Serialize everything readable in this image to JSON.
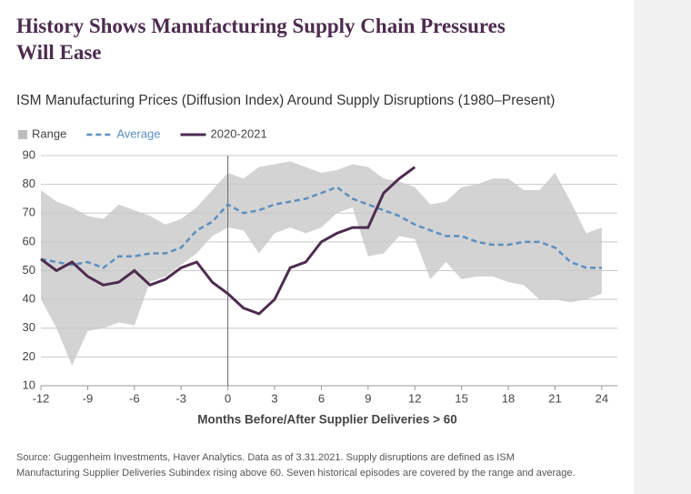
{
  "chart_data": {
    "type": "line",
    "title": "History Shows Manufacturing Supply Chain Pressures Will Ease",
    "subtitle": "ISM Manufacturing Prices (Diffusion Index) Around Supply Disruptions (1980–Present)",
    "xlabel": "Months Before/After Supplier Deliveries > 60",
    "source": [
      "Source: Guggenheim Investments, Haver Analytics. Data as of 3.31.2021. Supply disruptions are defined as ISM",
      "Manufacturing Supplier Deliveries Subindex rising above 60. Seven historical episodes are covered by the range and average."
    ],
    "x": [
      -12,
      -11,
      -10,
      -9,
      -8,
      -7,
      -6,
      -5,
      -4,
      -3,
      -2,
      -1,
      0,
      1,
      2,
      3,
      4,
      5,
      6,
      7,
      8,
      9,
      10,
      11,
      12,
      13,
      14,
      15,
      16,
      17,
      18,
      19,
      20,
      21,
      22,
      23,
      24
    ],
    "range": {
      "name": "Range",
      "color": "#d3d3d3",
      "upper": [
        78,
        74,
        72,
        69,
        68,
        73,
        71,
        69,
        66,
        68,
        72,
        78,
        84,
        82,
        86,
        87,
        88,
        86,
        84,
        85,
        87,
        86,
        82,
        81,
        79,
        73,
        74,
        79,
        80,
        82,
        82,
        78,
        78,
        84,
        74,
        63,
        65
      ],
      "lower": [
        40,
        30,
        17,
        29,
        30,
        32,
        31,
        46,
        48,
        52,
        56,
        62,
        65,
        64,
        56,
        63,
        65,
        63,
        65,
        70,
        72,
        55,
        56,
        62,
        61,
        47,
        53,
        47,
        48,
        48,
        46,
        45,
        40,
        40,
        39,
        40,
        42
      ]
    },
    "series": [
      {
        "name": "Average",
        "color": "#5b8fc0",
        "dash": true,
        "values": [
          54,
          53,
          52,
          53,
          51,
          55,
          55,
          56,
          56,
          58,
          64,
          67,
          73,
          70,
          71,
          73,
          74,
          75,
          77,
          79,
          75,
          73,
          71,
          69,
          66,
          64,
          62,
          62,
          60,
          59,
          59,
          60,
          60,
          58,
          53,
          51,
          51
        ]
      },
      {
        "name": "2020-2021",
        "color": "#4d2c4f",
        "dash": false,
        "values": [
          54,
          50,
          53,
          48,
          45,
          46,
          50,
          45,
          47,
          51,
          53,
          46,
          42,
          37,
          35,
          40,
          51,
          53,
          60,
          63,
          65,
          65,
          77,
          82,
          86,
          null,
          null,
          null,
          null,
          null,
          null,
          null,
          null,
          null,
          null,
          null,
          null
        ]
      }
    ],
    "vline": 0,
    "xlim": [
      -12,
      25
    ],
    "ylim": [
      10,
      90
    ],
    "xticks": [
      -12,
      -9,
      -6,
      -3,
      0,
      3,
      6,
      9,
      12,
      15,
      18,
      21,
      24
    ],
    "yticks": [
      10,
      20,
      30,
      40,
      50,
      60,
      70,
      80,
      90
    ],
    "grid": true,
    "legend": "top-left"
  }
}
